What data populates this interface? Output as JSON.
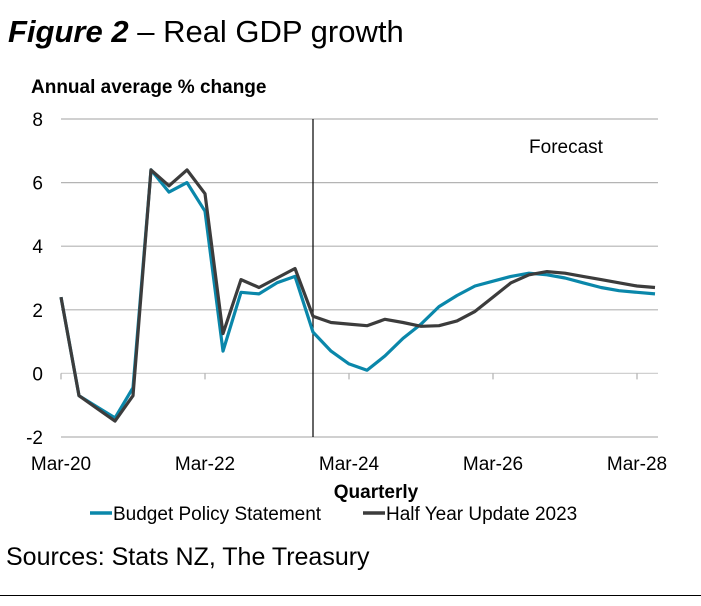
{
  "figure": {
    "number_label": "Figure 2",
    "dash": " – ",
    "title_text": "Real GDP growth",
    "sources": "Sources: Stats NZ, The Treasury"
  },
  "colors": {
    "bps": "#0a87aa",
    "hyu": "#3c3c3c",
    "grid": "#b4b4b4",
    "forecast_line": "#000000"
  },
  "chart_data": {
    "type": "line",
    "title": "Figure 2 – Real GDP growth",
    "ylabel": "Annual average % change",
    "xlabel": "Quarterly",
    "ylim": [
      -2,
      8
    ],
    "yticks": [
      8,
      6,
      4,
      2,
      0,
      -2
    ],
    "grid": true,
    "legend_position": "bottom",
    "annotation": "Forecast",
    "forecast_start": "Sep-23",
    "xtick_labels": [
      "Mar-20",
      "Mar-22",
      "Mar-24",
      "Mar-26",
      "Mar-28"
    ],
    "x": [
      "Mar-20",
      "Jun-20",
      "Sep-20",
      "Dec-20",
      "Mar-21",
      "Jun-21",
      "Sep-21",
      "Dec-21",
      "Mar-22",
      "Jun-22",
      "Sep-22",
      "Dec-22",
      "Mar-23",
      "Jun-23",
      "Sep-23",
      "Dec-23",
      "Mar-24",
      "Jun-24",
      "Sep-24",
      "Dec-24",
      "Mar-25",
      "Jun-25",
      "Sep-25",
      "Dec-25",
      "Mar-26",
      "Jun-26",
      "Sep-26",
      "Dec-26",
      "Mar-27",
      "Jun-27",
      "Sep-27",
      "Dec-27",
      "Mar-28",
      "Jun-28"
    ],
    "series": [
      {
        "name": "Budget Policy Statement",
        "key": "bps",
        "values": [
          2.4,
          -0.7,
          -1.05,
          -1.4,
          -0.45,
          6.4,
          5.7,
          6.0,
          5.1,
          0.7,
          2.55,
          2.5,
          2.85,
          3.05,
          1.3,
          0.7,
          0.3,
          0.1,
          0.55,
          1.1,
          1.55,
          2.1,
          2.45,
          2.75,
          2.9,
          3.05,
          3.15,
          3.1,
          3.0,
          2.85,
          2.7,
          2.6,
          2.55,
          2.5
        ]
      },
      {
        "name": "Half Year Update 2023",
        "key": "hyu",
        "values": [
          2.4,
          -0.7,
          -1.1,
          -1.5,
          -0.7,
          6.4,
          5.9,
          6.4,
          5.65,
          1.25,
          2.95,
          2.7,
          3.0,
          3.3,
          1.8,
          1.6,
          1.55,
          1.5,
          1.7,
          1.6,
          1.48,
          1.5,
          1.65,
          1.95,
          2.4,
          2.85,
          3.1,
          3.2,
          3.15,
          3.05,
          2.95,
          2.85,
          2.75,
          2.7
        ]
      }
    ]
  }
}
